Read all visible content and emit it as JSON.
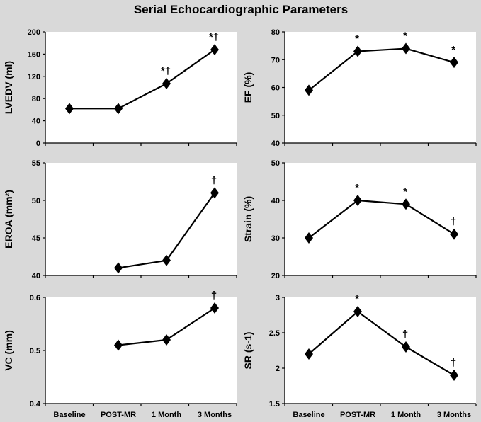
{
  "colors": {
    "background": "#d9d9d9",
    "ink": "#000000",
    "panel": "#ffffff"
  },
  "chart_data": {
    "title": "Serial Echocardiographic Parameters",
    "type": "line",
    "x_categories": [
      "Baseline",
      "POST-MR",
      "1 Month",
      "3 Months"
    ],
    "panels": [
      {
        "id": "lvedv",
        "type": "line",
        "ylabel": "LVEDV (ml)",
        "ylim": [
          0,
          200
        ],
        "yticks": [
          0,
          40,
          80,
          120,
          160,
          200
        ],
        "tick_labels": [
          "0",
          "40",
          "80",
          "120",
          "160",
          "200"
        ],
        "values": [
          62,
          62,
          107,
          168
        ],
        "annotations": [
          null,
          null,
          "*†",
          "*†"
        ],
        "show_x_labels": false
      },
      {
        "id": "ef",
        "type": "line",
        "ylabel": "EF (%)",
        "ylim": [
          40,
          80
        ],
        "yticks": [
          40,
          50,
          60,
          70,
          80
        ],
        "tick_labels": [
          "40",
          "50",
          "60",
          "70",
          "80"
        ],
        "values": [
          59,
          73,
          74,
          69
        ],
        "annotations": [
          null,
          "*",
          "*",
          "*"
        ],
        "show_x_labels": false
      },
      {
        "id": "eroa",
        "type": "line",
        "ylabel": "EROA (mm²)",
        "ylim": [
          40,
          55
        ],
        "yticks": [
          40,
          45,
          50,
          55
        ],
        "tick_labels": [
          "40",
          "45",
          "50",
          "55"
        ],
        "values": [
          null,
          41,
          42,
          51
        ],
        "annotations": [
          null,
          null,
          null,
          "†"
        ],
        "show_x_labels": false
      },
      {
        "id": "strain",
        "type": "line",
        "ylabel": "Strain (%)",
        "ylim": [
          20,
          50
        ],
        "yticks": [
          20,
          30,
          40,
          50
        ],
        "tick_labels": [
          "20",
          "30",
          "40",
          "50"
        ],
        "values": [
          30,
          40,
          39,
          31
        ],
        "annotations": [
          null,
          "*",
          "*",
          "†"
        ],
        "show_x_labels": false
      },
      {
        "id": "vc",
        "type": "line",
        "ylabel": "VC (mm)",
        "ylim": [
          0.4,
          0.6
        ],
        "yticks": [
          0.4,
          0.5,
          0.6
        ],
        "tick_labels": [
          "0.4",
          "0.5",
          "0.6"
        ],
        "values": [
          null,
          0.51,
          0.52,
          0.58
        ],
        "annotations": [
          null,
          null,
          null,
          "†"
        ],
        "show_x_labels": true
      },
      {
        "id": "sr",
        "type": "line",
        "ylabel": "SR (s-1)",
        "ylim": [
          1.5,
          3
        ],
        "yticks": [
          1.5,
          2,
          2.5,
          3
        ],
        "tick_labels": [
          "1.5",
          "2",
          "2.5",
          "3"
        ],
        "values": [
          2.2,
          2.8,
          2.3,
          1.9
        ],
        "annotations": [
          null,
          "*",
          "†",
          "†"
        ],
        "show_x_labels": true
      }
    ]
  }
}
